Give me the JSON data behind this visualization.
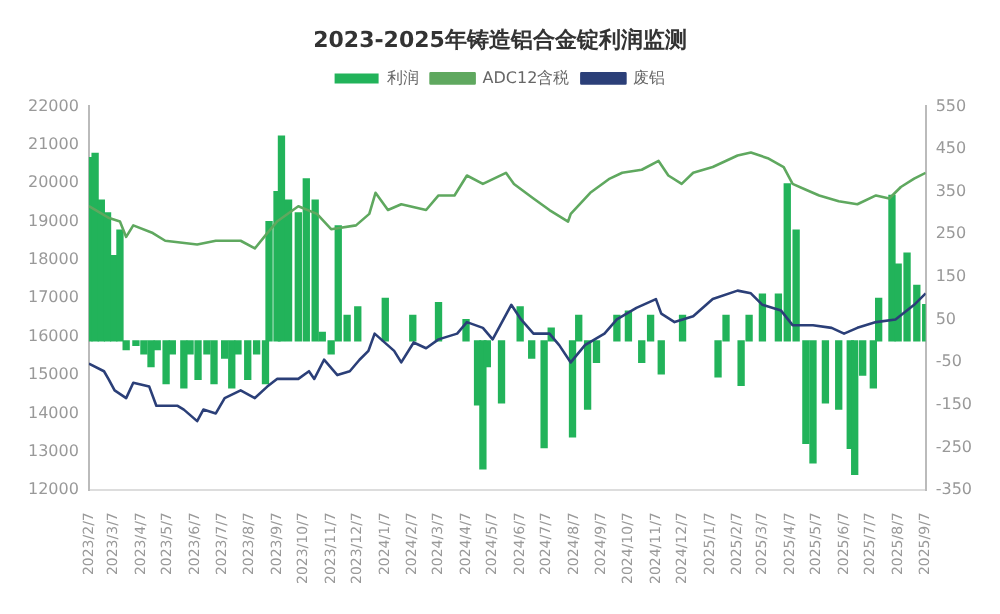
{
  "chart_data": {
    "type": "line",
    "title": "2023-2025年铸造铝合金锭利润监测",
    "legend": "top",
    "grid": false,
    "marker": "none",
    "xlim": [
      "2023-02-07",
      "2025-09-07"
    ],
    "xticks": [
      {
        "value": "2023-02-07",
        "label": "2023/2/7"
      },
      {
        "value": "2023-03-07",
        "label": "2023/3/7"
      },
      {
        "value": "2023-04-07",
        "label": "2023/4/7"
      },
      {
        "value": "2023-05-07",
        "label": "2023/5/7"
      },
      {
        "value": "2023-06-07",
        "label": "2023/6/7"
      },
      {
        "value": "2023-07-07",
        "label": "2023/7/7"
      },
      {
        "value": "2023-08-07",
        "label": "2023/8/7"
      },
      {
        "value": "2023-09-07",
        "label": "2023/9/7"
      },
      {
        "value": "2023-10-07",
        "label": "2023/10/7"
      },
      {
        "value": "2023-11-07",
        "label": "2023/11/7"
      },
      {
        "value": "2023-12-07",
        "label": "2023/12/7"
      },
      {
        "value": "2024-01-07",
        "label": "2024/1/7"
      },
      {
        "value": "2024-02-07",
        "label": "2024/2/7"
      },
      {
        "value": "2024-03-07",
        "label": "2024/3/7"
      },
      {
        "value": "2024-04-07",
        "label": "2024/4/7"
      },
      {
        "value": "2024-05-07",
        "label": "2024/5/7"
      },
      {
        "value": "2024-06-07",
        "label": "2024/6/7"
      },
      {
        "value": "2024-07-07",
        "label": "2024/7/7"
      },
      {
        "value": "2024-08-07",
        "label": "2024/8/7"
      },
      {
        "value": "2024-09-07",
        "label": "2024/9/7"
      },
      {
        "value": "2024-10-07",
        "label": "2024/10/7"
      },
      {
        "value": "2024-11-07",
        "label": "2024/11/7"
      },
      {
        "value": "2024-12-07",
        "label": "2024/12/7"
      },
      {
        "value": "2025-01-07",
        "label": "2025/1/7"
      },
      {
        "value": "2025-02-07",
        "label": "2025/2/7"
      },
      {
        "value": "2025-03-07",
        "label": "2025/3/7"
      },
      {
        "value": "2025-04-07",
        "label": "2025/4/7"
      },
      {
        "value": "2025-05-07",
        "label": "2025/5/7"
      },
      {
        "value": "2025-06-07",
        "label": "2025/6/7"
      },
      {
        "value": "2025-07-07",
        "label": "2025/7/7"
      },
      {
        "value": "2025-08-07",
        "label": "2025/8/7"
      },
      {
        "value": "2025-09-07",
        "label": "2025/9/7"
      }
    ],
    "ylim": [
      12000,
      22000
    ],
    "yticks": [
      12000,
      13000,
      14000,
      15000,
      16000,
      17000,
      18000,
      19000,
      20000,
      21000,
      22000
    ],
    "y2lim": [
      -350,
      550
    ],
    "y2ticks": [
      -350,
      -250,
      -150,
      -50,
      50,
      150,
      250,
      350,
      450,
      550
    ],
    "series": [
      {
        "name": "利润",
        "type": "bar",
        "axis": "y2",
        "color": "#22b35a",
        "x": [
          "2023-02-07",
          "2023-02-14",
          "2023-02-21",
          "2023-02-28",
          "2023-03-07",
          "2023-03-14",
          "2023-03-21",
          "2023-04-01",
          "2023-04-10",
          "2023-04-18",
          "2023-04-25",
          "2023-05-05",
          "2023-05-12",
          "2023-05-25",
          "2023-06-01",
          "2023-06-10",
          "2023-06-20",
          "2023-06-28",
          "2023-07-10",
          "2023-07-18",
          "2023-07-25",
          "2023-08-05",
          "2023-08-15",
          "2023-08-25",
          "2023-08-29",
          "2023-09-07",
          "2023-09-12",
          "2023-09-20",
          "2023-10-01",
          "2023-10-10",
          "2023-10-20",
          "2023-10-28",
          "2023-11-07",
          "2023-11-15",
          "2023-11-25",
          "2023-12-07",
          "2024-01-07",
          "2024-02-07",
          "2024-03-07",
          "2024-04-07",
          "2024-04-20",
          "2024-04-26",
          "2024-05-01",
          "2024-05-17",
          "2024-06-07",
          "2024-06-20",
          "2024-07-04",
          "2024-07-12",
          "2024-08-05",
          "2024-08-12",
          "2024-08-22",
          "2024-09-01",
          "2024-09-24",
          "2024-10-07",
          "2024-10-22",
          "2024-11-01",
          "2024-11-13",
          "2024-12-07",
          "2025-01-16",
          "2025-01-25",
          "2025-02-11",
          "2025-02-20",
          "2025-03-07",
          "2025-03-25",
          "2025-04-04",
          "2025-04-14",
          "2025-04-25",
          "2025-05-03",
          "2025-05-17",
          "2025-06-01",
          "2025-06-14",
          "2025-06-19",
          "2025-06-28",
          "2025-07-10",
          "2025-07-16",
          "2025-07-31",
          "2025-08-07",
          "2025-08-17",
          "2025-08-28",
          "2025-09-07"
        ],
        "values": [
          430,
          440,
          330,
          300,
          200,
          260,
          -20,
          -10,
          -30,
          -60,
          -20,
          -100,
          -30,
          -110,
          -30,
          -90,
          -30,
          -100,
          -40,
          -110,
          -30,
          -90,
          -30,
          -100,
          280,
          350,
          480,
          330,
          300,
          380,
          330,
          20,
          -30,
          270,
          60,
          80,
          100,
          60,
          90,
          50,
          -150,
          -300,
          -60,
          -145,
          80,
          -40,
          -250,
          30,
          -225,
          60,
          -160,
          -50,
          60,
          70,
          -50,
          60,
          -77,
          60,
          -84,
          60,
          -104,
          60,
          110,
          110,
          368,
          260,
          -240,
          -286,
          -145,
          -160,
          -252,
          -313,
          -80,
          -110,
          100,
          341,
          180,
          206,
          130,
          85
        ]
      },
      {
        "name": "ADC12含税",
        "color": "#5fa85f",
        "x": [
          "2023-02-07",
          "2023-03-01",
          "2023-03-14",
          "2023-03-21",
          "2023-03-29",
          "2023-04-20",
          "2023-05-04",
          "2023-06-09",
          "2023-06-30",
          "2023-07-28",
          "2023-08-13",
          "2023-08-27",
          "2023-09-07",
          "2023-10-01",
          "2023-10-22",
          "2023-11-07",
          "2023-12-05",
          "2023-12-20",
          "2023-12-27",
          "2024-01-10",
          "2024-01-25",
          "2024-02-22",
          "2024-03-07",
          "2024-03-25",
          "2024-04-08",
          "2024-04-26",
          "2024-05-22",
          "2024-05-31",
          "2024-06-22",
          "2024-07-10",
          "2024-07-31",
          "2024-08-03",
          "2024-08-25",
          "2024-09-16",
          "2024-09-30",
          "2024-10-22",
          "2024-11-10",
          "2024-11-21",
          "2024-12-06",
          "2024-12-19",
          "2025-01-10",
          "2025-02-07",
          "2025-02-22",
          "2025-03-13",
          "2025-03-31",
          "2025-04-10",
          "2025-04-25",
          "2025-05-10",
          "2025-06-01",
          "2025-06-22",
          "2025-07-13",
          "2025-07-28",
          "2025-08-10",
          "2025-08-25",
          "2025-09-07"
        ],
        "values": [
          19400,
          19100,
          19000,
          18600,
          18900,
          18700,
          18500,
          18400,
          18500,
          18500,
          18300,
          18700,
          19000,
          19400,
          19200,
          18800,
          18900,
          19200,
          19750,
          19300,
          19450,
          19300,
          19680,
          19680,
          20200,
          19980,
          20270,
          19980,
          19600,
          19300,
          19000,
          19200,
          19750,
          20120,
          20270,
          20350,
          20580,
          20200,
          19980,
          20270,
          20420,
          20720,
          20800,
          20650,
          20420,
          19980,
          19830,
          19680,
          19530,
          19450,
          19680,
          19600,
          19900,
          20120,
          20270
        ]
      },
      {
        "name": "废铝",
        "color": "#2b3f78",
        "x": [
          "2023-02-07",
          "2023-02-24",
          "2023-03-01",
          "2023-03-08",
          "2023-03-21",
          "2023-03-29",
          "2023-04-16",
          "2023-04-24",
          "2023-05-18",
          "2023-05-25",
          "2023-06-09",
          "2023-06-16",
          "2023-06-30",
          "2023-07-10",
          "2023-07-28",
          "2023-08-13",
          "2023-08-27",
          "2023-09-07",
          "2023-10-01",
          "2023-10-13",
          "2023-10-19",
          "2023-10-30",
          "2023-11-14",
          "2023-11-28",
          "2023-12-09",
          "2023-12-19",
          "2023-12-26",
          "2024-01-17",
          "2024-01-25",
          "2024-02-08",
          "2024-02-22",
          "2024-03-07",
          "2024-03-28",
          "2024-04-08",
          "2024-04-26",
          "2024-05-07",
          "2024-05-28",
          "2024-06-08",
          "2024-06-22",
          "2024-07-10",
          "2024-07-21",
          "2024-08-03",
          "2024-08-19",
          "2024-09-10",
          "2024-09-24",
          "2024-10-16",
          "2024-11-07",
          "2024-11-13",
          "2024-11-28",
          "2024-12-19",
          "2025-01-10",
          "2025-02-07",
          "2025-02-22",
          "2025-03-07",
          "2025-03-28",
          "2025-04-10",
          "2025-05-03",
          "2025-05-24",
          "2025-06-07",
          "2025-06-22",
          "2025-07-13",
          "2025-08-04",
          "2025-08-25",
          "2025-09-07"
        ],
        "values": [
          15300,
          15100,
          14900,
          14600,
          14400,
          14800,
          14700,
          14200,
          14200,
          14100,
          13800,
          14100,
          14000,
          14400,
          14600,
          14400,
          14700,
          14900,
          14900,
          15100,
          14900,
          15400,
          15000,
          15100,
          15400,
          15630,
          16080,
          15630,
          15330,
          15850,
          15700,
          15930,
          16080,
          16380,
          16230,
          15930,
          16830,
          16450,
          16080,
          16080,
          15780,
          15330,
          15780,
          16080,
          16450,
          16750,
          16980,
          16600,
          16380,
          16530,
          16980,
          17200,
          17130,
          16830,
          16680,
          16300,
          16300,
          16230,
          16080,
          16230,
          16380,
          16450,
          16830,
          17130
        ]
      }
    ]
  }
}
